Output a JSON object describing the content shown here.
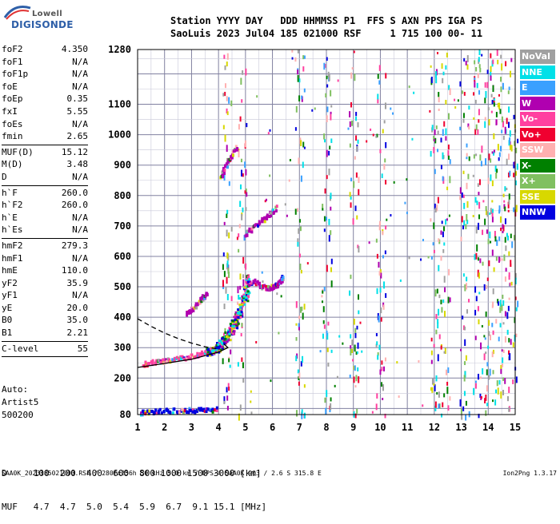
{
  "logo": {
    "line1": "Lowell",
    "line2": "DIGISONDE"
  },
  "header": {
    "line1": "Station YYYY DAY   DDD HHMMSS P1  FFS S AXN PPS IGA PS",
    "line2": "SaoLuis 2023 Jul04 185 021000 RSF     1 715 100 00- 11"
  },
  "params": [
    {
      "name": "foF2",
      "value": "4.350"
    },
    {
      "name": "foF1",
      "value": "N/A"
    },
    {
      "name": "foF1p",
      "value": "N/A"
    },
    {
      "name": "foE",
      "value": "N/A"
    },
    {
      "name": "foEp",
      "value": "0.35"
    },
    {
      "name": "fxI",
      "value": "5.55"
    },
    {
      "name": "foEs",
      "value": "N/A"
    },
    {
      "name": "fmin",
      "value": "2.65",
      "sep": true
    },
    {
      "name": "MUF(D)",
      "value": "15.12"
    },
    {
      "name": "M(D)",
      "value": "3.48"
    },
    {
      "name": "D",
      "value": "N/A",
      "sep": true
    },
    {
      "name": "h`F",
      "value": "260.0"
    },
    {
      "name": "h`F2",
      "value": "260.0"
    },
    {
      "name": "h`E",
      "value": "N/A"
    },
    {
      "name": "h`Es",
      "value": "N/A",
      "sep": true
    },
    {
      "name": "hmF2",
      "value": "279.3"
    },
    {
      "name": "hmF1",
      "value": "N/A"
    },
    {
      "name": "hmE",
      "value": "110.0"
    },
    {
      "name": "yF2",
      "value": "35.9"
    },
    {
      "name": "yF1",
      "value": "N/A"
    },
    {
      "name": "yE",
      "value": "20.0"
    },
    {
      "name": "B0",
      "value": "35.0"
    },
    {
      "name": "B1",
      "value": "2.21",
      "sep": true
    },
    {
      "name": "C-level",
      "value": "55",
      "sep": true
    }
  ],
  "auto": {
    "line1": "Auto:",
    "line2": "Artist5",
    "line3": "500200"
  },
  "legend": [
    {
      "label": "NoVal",
      "color": "#a0a0a0"
    },
    {
      "label": "NNE",
      "color": "#00e0e8"
    },
    {
      "label": "E",
      "color": "#3aa0ff"
    },
    {
      "label": "W",
      "color": "#b000b0"
    },
    {
      "label": "Vo-",
      "color": "#ff40a0"
    },
    {
      "label": "Vo+",
      "color": "#f00030"
    },
    {
      "label": "SSW",
      "color": "#ffb0b0"
    },
    {
      "label": "X-",
      "color": "#008000"
    },
    {
      "label": "X+",
      "color": "#80c060"
    },
    {
      "label": "SSE",
      "color": "#d8d800"
    },
    {
      "label": "NNW",
      "color": "#0000e0"
    }
  ],
  "dmuf": {
    "dline": "D     100  200  400  600  800 1000 1500 3000 [km]",
    "mline": "MUF   4.7  4.7  5.0  5.4  5.9  6.7  9.1 15.1 [MHz]"
  },
  "footer": {
    "left": "SAA0K_2023185021000.RSF / 280fx256h 50 kHz 5.0 km / DPS-4 SAA0K 903 / 2.6 S 315.8 E",
    "right": "Ion2Png 1.3.17"
  },
  "chart_data": {
    "type": "scatter",
    "xlim": [
      1,
      15
    ],
    "ylim": [
      80,
      1280
    ],
    "x_ticks": [
      1,
      2,
      3,
      4,
      5,
      6,
      7,
      8,
      9,
      10,
      11,
      12,
      13,
      14,
      15
    ],
    "y_ticks": [
      80,
      200,
      300,
      400,
      500,
      600,
      700,
      800,
      900,
      1000,
      1100,
      1280
    ],
    "x_minor_step": 0.5,
    "y_minor_step": 50,
    "grid": true,
    "legend_placement": "right",
    "traces": [
      {
        "name": "O-trace F2",
        "color": "#ff40a0",
        "points": [
          [
            1.2,
            245
          ],
          [
            1.6,
            250
          ],
          [
            2.0,
            255
          ],
          [
            2.5,
            262
          ],
          [
            3.0,
            270
          ],
          [
            3.4,
            280
          ],
          [
            3.7,
            290
          ],
          [
            4.0,
            300
          ],
          [
            4.2,
            315
          ],
          [
            4.35,
            335
          ],
          [
            4.5,
            360
          ],
          [
            4.6,
            380
          ],
          [
            4.7,
            400
          ],
          [
            4.8,
            420
          ],
          [
            4.9,
            450
          ],
          [
            5.0,
            480
          ],
          [
            5.05,
            510
          ],
          [
            5.1,
            540
          ]
        ]
      },
      {
        "name": "X-trace F2",
        "color": "#b000b0",
        "points": [
          [
            5.3,
            520
          ],
          [
            5.6,
            500
          ],
          [
            5.9,
            495
          ],
          [
            6.1,
            500
          ],
          [
            6.3,
            515
          ],
          [
            6.4,
            530
          ]
        ]
      },
      {
        "name": "Second hop",
        "color": "#b000b0",
        "points": [
          [
            2.8,
            410
          ],
          [
            3.1,
            430
          ],
          [
            3.4,
            460
          ],
          [
            3.6,
            480
          ],
          [
            5.0,
            670
          ],
          [
            5.4,
            700
          ],
          [
            5.8,
            730
          ],
          [
            6.2,
            760
          ]
        ]
      },
      {
        "name": "Third hop",
        "color": "#b000b0",
        "points": [
          [
            4.1,
            860
          ],
          [
            4.3,
            900
          ],
          [
            4.5,
            930
          ],
          [
            4.7,
            960
          ]
        ]
      },
      {
        "name": "Sporadic low",
        "color": "#0000e0",
        "points": [
          [
            1.1,
            85
          ],
          [
            1.5,
            88
          ],
          [
            2.0,
            90
          ],
          [
            2.5,
            92
          ],
          [
            3.0,
            93
          ],
          [
            3.5,
            94
          ],
          [
            4.0,
            95
          ]
        ]
      }
    ],
    "profile_curve": {
      "color": "#000",
      "points": [
        [
          1.0,
          235
        ],
        [
          2.0,
          248
        ],
        [
          3.0,
          262
        ],
        [
          4.0,
          285
        ],
        [
          4.35,
          300
        ],
        [
          4.2,
          312
        ]
      ]
    },
    "profile_dashed": {
      "color": "#000",
      "points": [
        [
          1.0,
          395
        ],
        [
          1.5,
          370
        ],
        [
          2.0,
          348
        ],
        [
          2.5,
          330
        ],
        [
          3.0,
          315
        ],
        [
          3.5,
          303
        ],
        [
          4.0,
          295
        ]
      ]
    }
  }
}
